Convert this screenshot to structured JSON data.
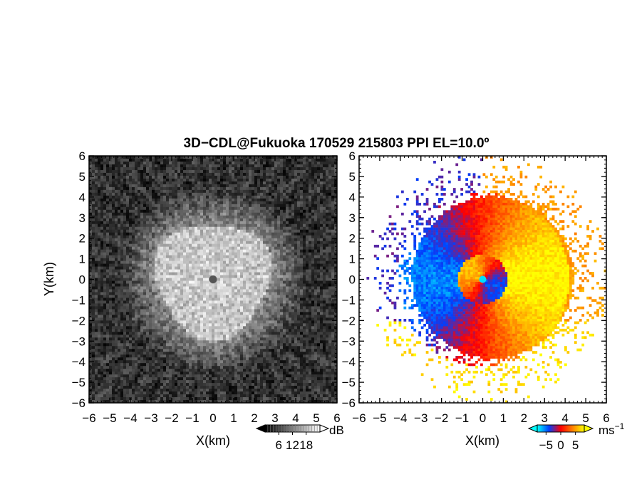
{
  "title": "3D−CDL@Fukuoka 170529 215803 PPI EL=10.0º",
  "chart_data": [
    {
      "type": "heatmap",
      "name": "reflectivity",
      "xlabel": "X(km)",
      "ylabel": "Y(km)",
      "xlim": [
        -6,
        6
      ],
      "ylim": [
        -6,
        6
      ],
      "x_ticks": [
        "−6",
        "−5",
        "−4",
        "−3",
        "−2",
        "−1",
        "0",
        "1",
        "2",
        "3",
        "4",
        "5",
        "6"
      ],
      "y_ticks": [
        "−6",
        "−5",
        "−4",
        "−3",
        "−2",
        "−1",
        "0",
        "1",
        "2",
        "3",
        "4",
        "5",
        "6"
      ],
      "colorbar": {
        "unit": "dB",
        "tick_labels": [
          "6",
          "12",
          "18"
        ],
        "range": [
          0,
          24
        ],
        "colors": [
          "#000000",
          "#ffffff"
        ]
      },
      "background_color": "#2a2a2a"
    },
    {
      "type": "heatmap",
      "name": "doppler-velocity",
      "xlabel": "X(km)",
      "xlim": [
        -6,
        6
      ],
      "ylim": [
        -6,
        6
      ],
      "x_ticks": [
        "−6",
        "−5",
        "−4",
        "−3",
        "−2",
        "−1",
        "0",
        "1",
        "2",
        "3",
        "4",
        "5",
        "6"
      ],
      "y_ticks": [
        "−6",
        "−5",
        "−4",
        "−3",
        "−2",
        "−1",
        "0",
        "1",
        "2",
        "3",
        "4",
        "5",
        "6"
      ],
      "colorbar": {
        "unit": "ms",
        "unit_exponent": "−1",
        "tick_labels": [
          "−5",
          "0",
          "5"
        ],
        "range": [
          -8,
          8
        ],
        "colors": [
          "#00ffff",
          "#0040ff",
          "#ff0000",
          "#ff8000",
          "#ffff00"
        ]
      },
      "background_color": "#ffffff"
    }
  ]
}
